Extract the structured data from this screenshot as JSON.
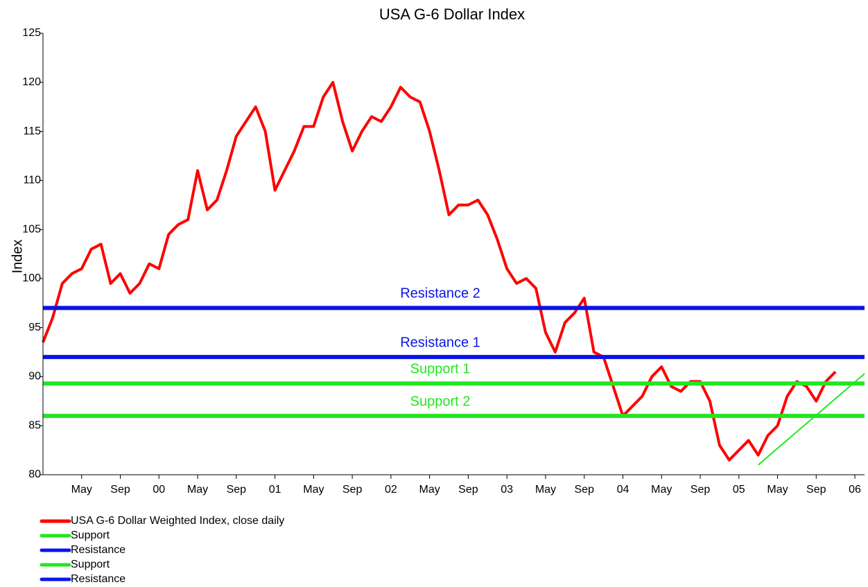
{
  "chart_data": {
    "type": "line",
    "title": "USA G-6 Dollar Index",
    "y_label": "Index",
    "xlim": [
      "1999-01",
      "2006-02"
    ],
    "xticks": [
      {
        "value": "1999-05",
        "label": "May"
      },
      {
        "value": "1999-09",
        "label": "Sep"
      },
      {
        "value": "2000-01",
        "label": "00"
      },
      {
        "value": "2000-05",
        "label": "May"
      },
      {
        "value": "2000-09",
        "label": "Sep"
      },
      {
        "value": "2001-01",
        "label": "01"
      },
      {
        "value": "2001-05",
        "label": "May"
      },
      {
        "value": "2001-09",
        "label": "Sep"
      },
      {
        "value": "2002-01",
        "label": "02"
      },
      {
        "value": "2002-05",
        "label": "May"
      },
      {
        "value": "2002-09",
        "label": "Sep"
      },
      {
        "value": "2003-01",
        "label": "03"
      },
      {
        "value": "2003-05",
        "label": "May"
      },
      {
        "value": "2003-09",
        "label": "Sep"
      },
      {
        "value": "2004-01",
        "label": "04"
      },
      {
        "value": "2004-05",
        "label": "May"
      },
      {
        "value": "2004-09",
        "label": "Sep"
      },
      {
        "value": "2005-01",
        "label": "05"
      },
      {
        "value": "2005-05",
        "label": "May"
      },
      {
        "value": "2005-09",
        "label": "Sep"
      },
      {
        "value": "2006-01",
        "label": "06"
      }
    ],
    "ylim": [
      80,
      125
    ],
    "yticks": [
      80,
      85,
      90,
      95,
      100,
      105,
      110,
      115,
      120,
      125
    ],
    "x": [
      "1999-01",
      "1999-02",
      "1999-03",
      "1999-04",
      "1999-05",
      "1999-06",
      "1999-07",
      "1999-08",
      "1999-09",
      "1999-10",
      "1999-11",
      "1999-12",
      "2000-01",
      "2000-02",
      "2000-03",
      "2000-04",
      "2000-05",
      "2000-06",
      "2000-07",
      "2000-08",
      "2000-09",
      "2000-10",
      "2000-11",
      "2000-12",
      "2001-01",
      "2001-02",
      "2001-03",
      "2001-04",
      "2001-05",
      "2001-06",
      "2001-07",
      "2001-08",
      "2001-09",
      "2001-10",
      "2001-11",
      "2001-12",
      "2002-01",
      "2002-02",
      "2002-03",
      "2002-04",
      "2002-05",
      "2002-06",
      "2002-07",
      "2002-08",
      "2002-09",
      "2002-10",
      "2002-11",
      "2002-12",
      "2003-01",
      "2003-02",
      "2003-03",
      "2003-04",
      "2003-05",
      "2003-06",
      "2003-07",
      "2003-08",
      "2003-09",
      "2003-10",
      "2003-11",
      "2003-12",
      "2004-01",
      "2004-02",
      "2004-03",
      "2004-04",
      "2004-05",
      "2004-06",
      "2004-07",
      "2004-08",
      "2004-09",
      "2004-10",
      "2004-11",
      "2004-12",
      "2005-01",
      "2005-02",
      "2005-03",
      "2005-04",
      "2005-05",
      "2005-06",
      "2005-07",
      "2005-08",
      "2005-09",
      "2005-10",
      "2005-11"
    ],
    "series": [
      {
        "name": "USA G-6 Dollar Weighted Index, close daily",
        "color": "#ff0000",
        "values": [
          93.5,
          96,
          99.5,
          100.5,
          101,
          103,
          103.5,
          99.5,
          100.5,
          98.5,
          99.5,
          101.5,
          101,
          104.5,
          105.5,
          106,
          111,
          107,
          108,
          111,
          114.5,
          116,
          117.5,
          115,
          109,
          111,
          113,
          115.5,
          115.5,
          118.5,
          120,
          116,
          113,
          115,
          116.5,
          116,
          117.5,
          119.5,
          118.5,
          118,
          115,
          111,
          106.5,
          107.5,
          107.5,
          108,
          106.5,
          104,
          101,
          99.5,
          100,
          99,
          94.5,
          92.5,
          95.5,
          96.5,
          98,
          92.5,
          92,
          89,
          86,
          87,
          88,
          90,
          91,
          89,
          88.5,
          89.5,
          89.5,
          87.5,
          83,
          81.5,
          82.5,
          83.5,
          82,
          84,
          85,
          88,
          89.5,
          89,
          87.5,
          89.5,
          90.5
        ]
      },
      {
        "name": "Support",
        "color": "#22e622",
        "value": 89.3,
        "label": "Support 1"
      },
      {
        "name": "Resistance",
        "color": "#0a14e6",
        "value": 92,
        "label": "Resistance 1"
      },
      {
        "name": "Support",
        "color": "#22e622",
        "value": 86,
        "label": "Support 2"
      },
      {
        "name": "Resistance",
        "color": "#0a14e6",
        "value": 97,
        "label": "Resistance 2"
      }
    ],
    "trendline": {
      "color": "#22e622",
      "x": [
        "2005-03",
        "2006-02"
      ],
      "values": [
        81,
        90.3
      ]
    }
  }
}
